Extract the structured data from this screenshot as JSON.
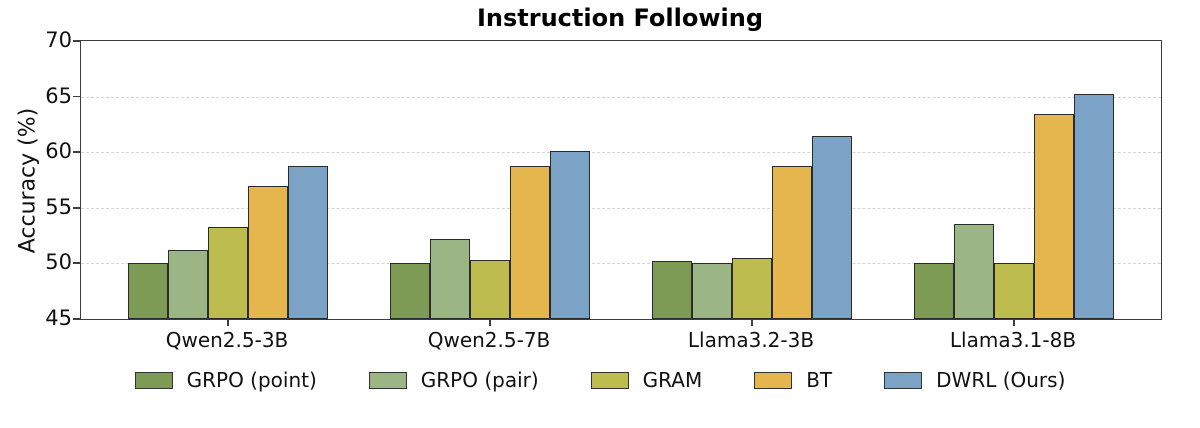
{
  "title": "Instruction Following",
  "ylabel": "Accuracy (%)",
  "chart_data": {
    "type": "bar",
    "title": "Instruction Following",
    "xlabel": "",
    "ylabel": "Accuracy (%)",
    "ylim": [
      45,
      70
    ],
    "yticks": [
      45,
      50,
      55,
      60,
      65,
      70
    ],
    "grid_yticks": [
      50,
      55,
      60,
      65
    ],
    "grid": "horizontal dashed",
    "legend_position": "bottom center",
    "categories": [
      "Qwen2.5-3B",
      "Qwen2.5-7B",
      "Llama3.2-3B",
      "Llama3.1-8B"
    ],
    "series": [
      {
        "name": "GRPO (point)",
        "color": "#7d9b55",
        "values": [
          50.0,
          50.0,
          50.2,
          50.0
        ]
      },
      {
        "name": "GRPO (pair)",
        "color": "#9cb585",
        "values": [
          51.2,
          52.2,
          50.0,
          53.5
        ]
      },
      {
        "name": "GRAM",
        "color": "#bcbc4f",
        "values": [
          53.3,
          50.3,
          50.5,
          50.0
        ]
      },
      {
        "name": "BT",
        "color": "#e5b54e",
        "values": [
          57.0,
          58.8,
          58.8,
          63.4
        ]
      },
      {
        "name": "DWRL (Ours)",
        "color": "#7ba3c5",
        "values": [
          58.8,
          60.1,
          61.5,
          65.2
        ]
      }
    ],
    "axis_color": "#3d3d3d",
    "gridline_color": "#d4d4d4",
    "bar_edge_color": "#2b2b2b"
  }
}
